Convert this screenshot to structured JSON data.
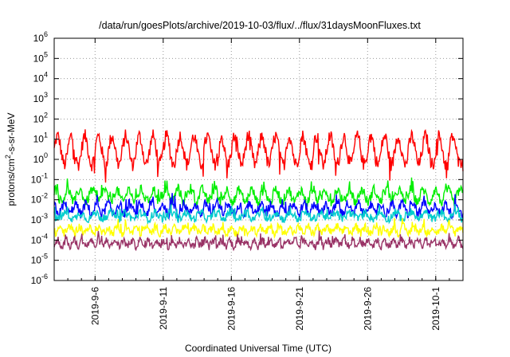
{
  "chart_data": {
    "type": "line",
    "title": "/data/run/goesPlots/archive/2019-10-03/flux/../flux/31daysMoonFluxes.txt",
    "xlabel": "Coordinated Universal Time (UTC)",
    "ylabel_main": "protons/cm",
    "ylabel_sup": "2",
    "ylabel_rest": "-s-sr-MeV",
    "yscale": "log",
    "ylim_exp": [
      -6,
      6
    ],
    "xlim": [
      "2019-09-03",
      "2019-10-03"
    ],
    "grid": true,
    "x_ticks": [
      "2019-9-6",
      "2019-9-11",
      "2019-9-16",
      "2019-9-21",
      "2019-9-26",
      "2019-10-1"
    ],
    "x_tick_days": [
      3,
      8,
      13,
      18,
      23,
      28
    ],
    "y_ticks": [
      {
        "base": "10",
        "exp": "-6"
      },
      {
        "base": "10",
        "exp": "-5"
      },
      {
        "base": "10",
        "exp": "-4"
      },
      {
        "base": "10",
        "exp": "-3"
      },
      {
        "base": "10",
        "exp": "-2"
      },
      {
        "base": "10",
        "exp": "-1"
      },
      {
        "base": "10",
        "exp": "0"
      },
      {
        "base": "10",
        "exp": "1"
      },
      {
        "base": "10",
        "exp": "2"
      },
      {
        "base": "10",
        "exp": "3"
      },
      {
        "base": "10",
        "exp": "4"
      },
      {
        "base": "10",
        "exp": "5"
      },
      {
        "base": "10",
        "exp": "6"
      }
    ],
    "series": [
      {
        "color": "#ff0000",
        "log_center": 0.45,
        "log_amp": 0.7,
        "log_noise": 0.35,
        "period_days": 1.0
      },
      {
        "color": "#00ee00",
        "log_center": -1.8,
        "log_amp": 0.3,
        "log_noise": 0.25,
        "period_days": 0.9
      },
      {
        "color": "#0000ff",
        "log_center": -2.45,
        "log_amp": 0.25,
        "log_noise": 0.25,
        "period_days": 0.8
      },
      {
        "color": "#00cccc",
        "log_center": -2.8,
        "log_amp": 0.15,
        "log_noise": 0.2,
        "period_days": 1.1
      },
      {
        "color": "#ffff00",
        "log_center": -3.5,
        "log_amp": 0.15,
        "log_noise": 0.2,
        "period_days": 0.7
      },
      {
        "color": "#993366",
        "log_center": -4.15,
        "log_amp": 0.15,
        "log_noise": 0.2,
        "period_days": 0.6
      }
    ]
  }
}
